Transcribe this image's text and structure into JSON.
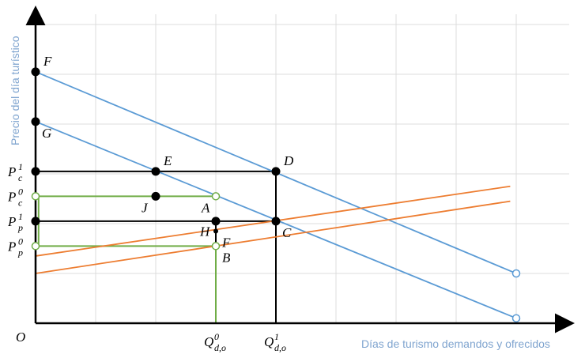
{
  "chart_data": {
    "type": "line",
    "title": "",
    "xlabel": "Días de turismo demandos y ofrecidos",
    "ylabel": "Precio del día turístico",
    "origin_label": "O",
    "xlim": [
      0,
      8.9
    ],
    "ylim": [
      0,
      6.3
    ],
    "grid": true,
    "x_ticks": [
      {
        "x": 3,
        "main": "Q",
        "sup": "0",
        "sub": "d,o"
      },
      {
        "x": 4,
        "main": "Q",
        "sup": "1",
        "sub": "d,o"
      }
    ],
    "y_ticks": [
      {
        "y": 3.05,
        "main": "P",
        "sup": "1",
        "sub": "c"
      },
      {
        "y": 2.55,
        "main": "P",
        "sup": "0",
        "sub": "c"
      },
      {
        "y": 2.05,
        "main": "P",
        "sup": "1",
        "sub": "p"
      },
      {
        "y": 1.55,
        "main": "P",
        "sup": "0",
        "sub": "p"
      }
    ],
    "series": [
      {
        "color": "#5b9bd5",
        "x": [
          0,
          8
        ],
        "y": [
          5.05,
          1.0
        ],
        "end_marker": "open"
      },
      {
        "color": "#5b9bd5",
        "x": [
          0,
          8
        ],
        "y": [
          4.05,
          0.1
        ],
        "end_marker": "open"
      },
      {
        "color": "#ed7d31",
        "x": [
          0,
          7.9
        ],
        "y": [
          1.35,
          2.75
        ]
      },
      {
        "color": "#ed7d31",
        "x": [
          0,
          7.9
        ],
        "y": [
          1.0,
          2.45
        ]
      }
    ],
    "guide_lines": [
      {
        "color": "#000000",
        "points": [
          [
            0,
            3.05
          ],
          [
            4,
            3.05
          ],
          [
            4,
            0
          ]
        ]
      },
      {
        "color": "#000000",
        "points": [
          [
            0,
            2.05
          ],
          [
            4,
            2.05
          ]
        ]
      },
      {
        "color": "#000000",
        "points": [
          [
            3,
            2.05
          ],
          [
            3,
            0
          ]
        ]
      },
      {
        "color": "#70ad47",
        "points": [
          [
            0,
            2.55
          ],
          [
            3,
            2.55
          ]
        ]
      },
      {
        "color": "#70ad47",
        "points": [
          [
            0,
            1.55
          ],
          [
            3,
            1.55
          ]
        ]
      },
      {
        "color": "#70ad47",
        "points": [
          [
            3,
            1.55
          ],
          [
            3,
            0
          ]
        ]
      },
      {
        "color": "#70ad47",
        "points": [
          [
            0.05,
            2.55
          ],
          [
            0.05,
            1.55
          ]
        ]
      }
    ],
    "points": [
      {
        "label": "F",
        "x": 0,
        "y": 5.05,
        "style": "filled",
        "label_pos": "upper-right"
      },
      {
        "label": "G",
        "x": 0,
        "y": 4.05,
        "style": "filled",
        "label_pos": "lower-right"
      },
      {
        "label": "",
        "x": 0,
        "y": 3.05,
        "style": "filled"
      },
      {
        "label": "",
        "x": 0,
        "y": 2.05,
        "style": "filled"
      },
      {
        "label": "",
        "x": 0,
        "y": 2.55,
        "style": "open-green"
      },
      {
        "label": "",
        "x": 0,
        "y": 1.55,
        "style": "open-green"
      },
      {
        "label": "E",
        "x": 2,
        "y": 3.05,
        "style": "filled",
        "label_pos": "upper-right"
      },
      {
        "label": "D",
        "x": 4,
        "y": 3.05,
        "style": "filled",
        "label_pos": "upper-right"
      },
      {
        "label": "J",
        "x": 2,
        "y": 2.55,
        "style": "filled",
        "label_pos": "lower-left"
      },
      {
        "label": "A",
        "x": 3,
        "y": 2.55,
        "style": "open-green",
        "label_pos": "lower-left"
      },
      {
        "label": "",
        "x": 3,
        "y": 2.05,
        "style": "filled"
      },
      {
        "label": "C",
        "x": 4,
        "y": 2.05,
        "style": "filled",
        "label_pos": "lower-right"
      },
      {
        "label": "H",
        "x": 3,
        "y": 1.85,
        "style": "small",
        "label_pos": "left"
      },
      {
        "label": "F",
        "x": 3,
        "y": 1.85,
        "style": "none",
        "label_pos": "lower-right"
      },
      {
        "label": "B",
        "x": 3,
        "y": 1.55,
        "style": "open-green",
        "label_pos": "lower-right"
      }
    ]
  }
}
